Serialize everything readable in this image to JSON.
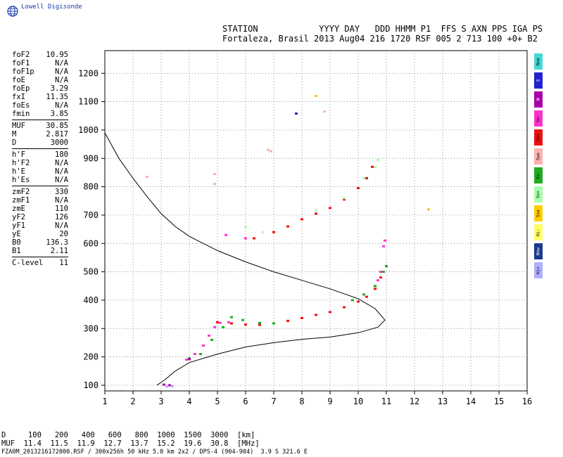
{
  "brand": {
    "name": "Lowell Digisonde",
    "logo_icon": "globe-icon"
  },
  "header": {
    "line1": "STATION            YYYY DAY   DDD HHMM P1  FFS S AXN PPS IGA PS",
    "line2": "Fortaleza, Brasil 2013 Aug04 216 1720 RSF 005 2 713 100 +0+ B2"
  },
  "params": [
    [
      {
        "k": "foF2",
        "v": "10.95"
      },
      {
        "k": "foF1",
        "v": "N/A"
      },
      {
        "k": "foF1p",
        "v": "N/A"
      },
      {
        "k": "foE",
        "v": "N/A"
      },
      {
        "k": "foEp",
        "v": "3.29"
      },
      {
        "k": "fxI",
        "v": "11.35"
      },
      {
        "k": "foEs",
        "v": "N/A"
      },
      {
        "k": "fmin",
        "v": "3.85"
      }
    ],
    [
      {
        "k": "MUF",
        "v": "30.85"
      },
      {
        "k": "M",
        "v": "2.817"
      },
      {
        "k": "D",
        "v": "3000"
      }
    ],
    [
      {
        "k": "h'F",
        "v": "180"
      },
      {
        "k": "h'F2",
        "v": "N/A"
      },
      {
        "k": "h'E",
        "v": "N/A"
      },
      {
        "k": "h'Es",
        "v": "N/A"
      }
    ],
    [
      {
        "k": "zmF2",
        "v": "330"
      },
      {
        "k": "zmF1",
        "v": "N/A"
      },
      {
        "k": "zmE",
        "v": "110"
      },
      {
        "k": "yF2",
        "v": "126"
      },
      {
        "k": "yF1",
        "v": "N/A"
      },
      {
        "k": "yE",
        "v": "20"
      },
      {
        "k": "B0",
        "v": "136.3"
      },
      {
        "k": "B1",
        "v": "2.11"
      }
    ],
    [
      {
        "k": "C-level",
        "v": "11"
      }
    ]
  ],
  "legend": [
    {
      "label": "Nne",
      "color": "#44d8d8"
    },
    {
      "label": "E",
      "color": "#2222cc"
    },
    {
      "label": "W",
      "color": "#aa00aa"
    },
    {
      "label": "Vo-",
      "color": "#ff33cc"
    },
    {
      "label": "Vo+",
      "color": "#ee1111"
    },
    {
      "label": "Swo",
      "color": "#ffb0b0"
    },
    {
      "label": "Vx-",
      "color": "#22aa22"
    },
    {
      "label": "Vx+",
      "color": "#aaffaa"
    },
    {
      "label": "Sse",
      "color": "#ffcc00"
    },
    {
      "label": "Hi-",
      "color": "#ffff66"
    },
    {
      "label": "Nnw",
      "color": "#1a3a8a"
    },
    {
      "label": "Hi+",
      "color": "#b0b0ff"
    }
  ],
  "distance_table": {
    "line1": "D     100   200   400   600   800  1000  1500  3000  [km]",
    "line2": "MUF  11.4  11.5  11.9  12.7  13.7  15.2  19.6  30.8  [MHz]"
  },
  "footer": "FZA0M_2013216172000.RSF / 300x256h 50 kHz 5.0 km 2x2 / DPS-4 (904-904)  3.9 S 321.6 E",
  "chart_data": {
    "type": "scatter",
    "title": "",
    "xlabel": "",
    "ylabel": "",
    "xlim": [
      1,
      16
    ],
    "ylim": [
      80,
      1280
    ],
    "grid": true,
    "x_ticks": [
      1,
      2,
      3,
      4,
      5,
      6,
      7,
      8,
      9,
      10,
      11,
      12,
      13,
      14,
      15,
      16
    ],
    "y_ticks": [
      100,
      200,
      300,
      400,
      500,
      600,
      700,
      800,
      900,
      1000,
      1100,
      1200
    ],
    "profile": [
      [
        1.0,
        990
      ],
      [
        1.5,
        900
      ],
      [
        2.0,
        830
      ],
      [
        2.5,
        765
      ],
      [
        3.0,
        705
      ],
      [
        3.5,
        660
      ],
      [
        4.0,
        625
      ],
      [
        5.0,
        575
      ],
      [
        6.0,
        535
      ],
      [
        7.0,
        500
      ],
      [
        8.0,
        470
      ],
      [
        9.0,
        440
      ],
      [
        10.0,
        405
      ],
      [
        10.6,
        370
      ],
      [
        10.95,
        330
      ],
      [
        10.7,
        305
      ],
      [
        10.0,
        285
      ],
      [
        9.0,
        270
      ],
      [
        8.0,
        262
      ],
      [
        7.0,
        250
      ],
      [
        6.0,
        235
      ],
      [
        5.0,
        210
      ],
      [
        4.0,
        180
      ],
      [
        3.5,
        150
      ],
      [
        3.2,
        125
      ],
      [
        3.0,
        110
      ],
      [
        2.85,
        100
      ]
    ],
    "series": [
      {
        "name": "Vo+",
        "color": "#ee1111",
        "points": [
          [
            5.0,
            322
          ],
          [
            5.5,
            318
          ],
          [
            6.0,
            314
          ],
          [
            6.5,
            313
          ],
          [
            7.0,
            318
          ],
          [
            7.5,
            327
          ],
          [
            8.0,
            337
          ],
          [
            8.5,
            348
          ],
          [
            9.0,
            358
          ],
          [
            9.5,
            375
          ],
          [
            10.0,
            395
          ],
          [
            10.3,
            412
          ],
          [
            10.6,
            440
          ],
          [
            10.8,
            480
          ],
          [
            6.3,
            618
          ],
          [
            7.0,
            640
          ],
          [
            7.5,
            660
          ],
          [
            8.0,
            685
          ],
          [
            8.5,
            705
          ],
          [
            9.0,
            725
          ],
          [
            9.5,
            755
          ],
          [
            10.0,
            795
          ],
          [
            10.3,
            830
          ],
          [
            10.5,
            870
          ]
        ]
      },
      {
        "name": "Vo-",
        "color": "#ff33cc",
        "points": [
          [
            3.9,
            190
          ],
          [
            4.2,
            210
          ],
          [
            4.5,
            240
          ],
          [
            4.7,
            275
          ],
          [
            4.9,
            305
          ],
          [
            5.1,
            320
          ],
          [
            5.4,
            322
          ],
          [
            10.7,
            470
          ],
          [
            10.8,
            500
          ],
          [
            10.9,
            590
          ],
          [
            10.95,
            610
          ],
          [
            6.0,
            618
          ],
          [
            5.3,
            630
          ]
        ]
      },
      {
        "name": "Vx-",
        "color": "#22aa22",
        "points": [
          [
            4.0,
            195
          ],
          [
            4.4,
            210
          ],
          [
            4.8,
            260
          ],
          [
            5.2,
            305
          ],
          [
            5.5,
            340
          ],
          [
            5.9,
            330
          ],
          [
            6.5,
            320
          ],
          [
            7.0,
            318
          ],
          [
            9.8,
            400
          ],
          [
            10.2,
            420
          ],
          [
            10.6,
            450
          ],
          [
            10.9,
            500
          ],
          [
            11.0,
            520
          ]
        ]
      },
      {
        "name": "Vx+",
        "color": "#aaffaa",
        "points": [
          [
            6.6,
            640
          ],
          [
            6.0,
            658
          ],
          [
            8.5,
            715
          ],
          [
            9.5,
            760
          ],
          [
            10.2,
            830
          ],
          [
            10.6,
            870
          ],
          [
            10.7,
            895
          ]
        ]
      },
      {
        "name": "W",
        "color": "#aa00aa",
        "points": [
          [
            3.3,
            100
          ],
          [
            3.1,
            102
          ],
          [
            4.0,
            192
          ]
        ]
      },
      {
        "name": "Hi+",
        "color": "#b0b0ff",
        "points": [
          [
            3.2,
            95
          ],
          [
            3.4,
            96
          ]
        ]
      },
      {
        "name": "Swo",
        "color": "#ffb0b0",
        "points": [
          [
            6.8,
            930
          ],
          [
            6.9,
            925
          ],
          [
            4.9,
            845
          ],
          [
            4.9,
            810
          ],
          [
            2.5,
            835
          ],
          [
            8.8,
            1065
          ]
        ]
      },
      {
        "name": "Sse",
        "color": "#ffcc00",
        "points": [
          [
            12.5,
            720
          ],
          [
            8.5,
            1120
          ]
        ]
      },
      {
        "name": "E",
        "color": "#2222cc",
        "points": [
          [
            7.8,
            1058
          ]
        ]
      }
    ]
  }
}
